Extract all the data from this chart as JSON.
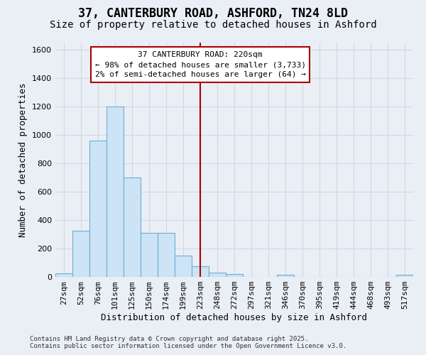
{
  "title": "37, CANTERBURY ROAD, ASHFORD, TN24 8LD",
  "subtitle": "Size of property relative to detached houses in Ashford",
  "xlabel": "Distribution of detached houses by size in Ashford",
  "ylabel": "Number of detached properties",
  "categories": [
    "27sqm",
    "52sqm",
    "76sqm",
    "101sqm",
    "125sqm",
    "150sqm",
    "174sqm",
    "199sqm",
    "223sqm",
    "248sqm",
    "272sqm",
    "297sqm",
    "321sqm",
    "346sqm",
    "370sqm",
    "395sqm",
    "419sqm",
    "444sqm",
    "468sqm",
    "493sqm",
    "517sqm"
  ],
  "values": [
    25,
    325,
    960,
    1200,
    700,
    310,
    310,
    150,
    75,
    30,
    20,
    0,
    0,
    15,
    0,
    0,
    0,
    0,
    0,
    0,
    15
  ],
  "bar_color": "#cce4f5",
  "bar_edge_color": "#6aaed6",
  "vline_pos": 8,
  "vline_color": "#aa0000",
  "annotation_text_line1": "37 CANTERBURY ROAD: 220sqm",
  "annotation_text_line2": "← 98% of detached houses are smaller (3,733)",
  "annotation_text_line3": "2% of semi-detached houses are larger (64) →",
  "annotation_box_edge_color": "#aa0000",
  "background_color": "#eaeff6",
  "grid_color": "#d0d8e4",
  "footer_line1": "Contains HM Land Registry data © Crown copyright and database right 2025.",
  "footer_line2": "Contains public sector information licensed under the Open Government Licence v3.0.",
  "ylim": [
    0,
    1650
  ],
  "yticks": [
    0,
    200,
    400,
    600,
    800,
    1000,
    1200,
    1400,
    1600
  ],
  "title_fontsize": 12,
  "subtitle_fontsize": 10,
  "label_fontsize": 9,
  "tick_fontsize": 8,
  "annot_fontsize": 8,
  "footer_fontsize": 6.5
}
